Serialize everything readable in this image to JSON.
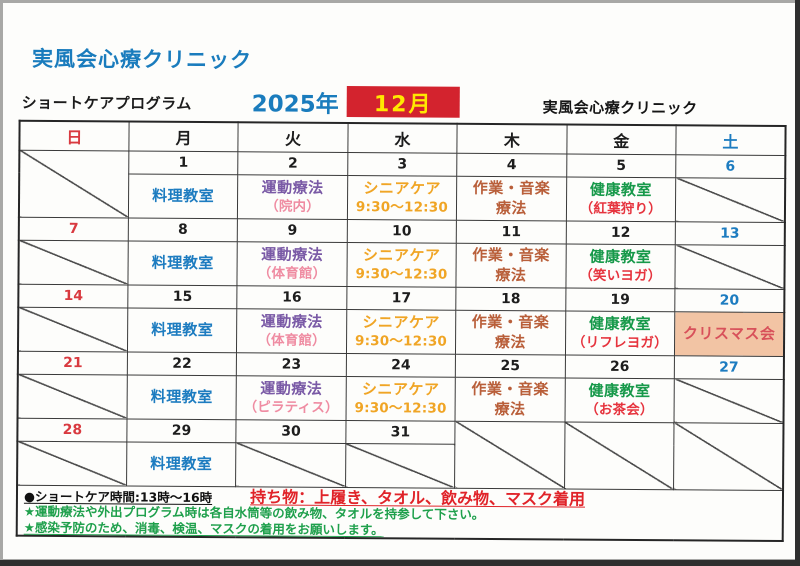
{
  "header": {
    "clinic_title": "実風会心療クリニック",
    "program_label": "ショートケアプログラム",
    "year_label": "2025年",
    "month_label": "12月",
    "clinic_name": "実風会心療クリニック"
  },
  "colors": {
    "title_blue": "#1a7cbd",
    "month_box_bg": "#d3232e",
    "month_box_text": "#ffe800",
    "sunday_red": "#d93a40",
    "saturday_blue": "#1d7cc0",
    "weekday_black": "#1d1d1d",
    "cooking_blue": "#1d7cc0",
    "exercise_purple": "#7a5aa6",
    "venue_pink": "#ef8ca2",
    "senior_orange": "#f0a525",
    "work_music_brick": "#b95f3a",
    "health_green": "#17994a",
    "paren_red": "#e6343e",
    "xmas_text": "#d8515a",
    "xmas_bg": "#f2c4a4",
    "note_red": "#e02329",
    "note_green": "#1fa04c"
  },
  "calendar": {
    "weekday_headers": [
      {
        "label": "日",
        "color_key": "sunday_red"
      },
      {
        "label": "月",
        "color_key": "weekday_black"
      },
      {
        "label": "火",
        "color_key": "weekday_black"
      },
      {
        "label": "水",
        "color_key": "weekday_black"
      },
      {
        "label": "木",
        "color_key": "weekday_black"
      },
      {
        "label": "金",
        "color_key": "weekday_black"
      },
      {
        "label": "土",
        "color_key": "saturday_blue"
      }
    ],
    "weeks": [
      {
        "dates": [
          "",
          "1",
          "2",
          "3",
          "4",
          "5",
          "6"
        ],
        "cells": [
          {
            "kind": "blank-merged"
          },
          {
            "kind": "program",
            "lines": [
              {
                "text": "料理教室",
                "color_key": "cooking_blue",
                "size": "lg"
              }
            ]
          },
          {
            "kind": "program",
            "lines": [
              {
                "text": "運動療法",
                "color_key": "exercise_purple",
                "size": "lg"
              },
              {
                "text": "（院内）",
                "color_key": "venue_pink",
                "size": "md"
              }
            ]
          },
          {
            "kind": "program",
            "lines": [
              {
                "text": "シニアケア",
                "color_key": "senior_orange",
                "size": "lg"
              },
              {
                "text": "9:30～12:30",
                "color_key": "senior_orange",
                "size": "md"
              }
            ]
          },
          {
            "kind": "program",
            "lines": [
              {
                "text": "作業・音楽",
                "color_key": "work_music_brick",
                "size": "lg"
              },
              {
                "text": "療法",
                "color_key": "work_music_brick",
                "size": "lg"
              }
            ]
          },
          {
            "kind": "program",
            "lines": [
              {
                "text": "健康教室",
                "color_key": "health_green",
                "size": "lg"
              },
              {
                "text": "（紅葉狩り）",
                "color_key": "paren_red",
                "size": "md"
              }
            ]
          },
          {
            "kind": "blank"
          }
        ]
      },
      {
        "dates": [
          "7",
          "8",
          "9",
          "10",
          "11",
          "12",
          "13"
        ],
        "cells": [
          {
            "kind": "blank"
          },
          {
            "kind": "program",
            "lines": [
              {
                "text": "料理教室",
                "color_key": "cooking_blue",
                "size": "lg"
              }
            ]
          },
          {
            "kind": "program",
            "lines": [
              {
                "text": "運動療法",
                "color_key": "exercise_purple",
                "size": "lg"
              },
              {
                "text": "（体育館）",
                "color_key": "venue_pink",
                "size": "md"
              }
            ]
          },
          {
            "kind": "program",
            "lines": [
              {
                "text": "シニアケア",
                "color_key": "senior_orange",
                "size": "lg"
              },
              {
                "text": "9:30～12:30",
                "color_key": "senior_orange",
                "size": "md"
              }
            ]
          },
          {
            "kind": "program",
            "lines": [
              {
                "text": "作業・音楽",
                "color_key": "work_music_brick",
                "size": "lg"
              },
              {
                "text": "療法",
                "color_key": "work_music_brick",
                "size": "lg"
              }
            ]
          },
          {
            "kind": "program",
            "lines": [
              {
                "text": "健康教室",
                "color_key": "health_green",
                "size": "lg"
              },
              {
                "text": "（笑いヨガ）",
                "color_key": "paren_red",
                "size": "md"
              }
            ]
          },
          {
            "kind": "blank"
          }
        ]
      },
      {
        "dates": [
          "14",
          "15",
          "16",
          "17",
          "18",
          "19",
          "20"
        ],
        "cells": [
          {
            "kind": "blank"
          },
          {
            "kind": "program",
            "lines": [
              {
                "text": "料理教室",
                "color_key": "cooking_blue",
                "size": "lg"
              }
            ]
          },
          {
            "kind": "program",
            "lines": [
              {
                "text": "運動療法",
                "color_key": "exercise_purple",
                "size": "lg"
              },
              {
                "text": "（体育館）",
                "color_key": "venue_pink",
                "size": "md"
              }
            ]
          },
          {
            "kind": "program",
            "lines": [
              {
                "text": "シニアケア",
                "color_key": "senior_orange",
                "size": "lg"
              },
              {
                "text": "9:30～12:30",
                "color_key": "senior_orange",
                "size": "md"
              }
            ]
          },
          {
            "kind": "program",
            "lines": [
              {
                "text": "作業・音楽",
                "color_key": "work_music_brick",
                "size": "lg"
              },
              {
                "text": "療法",
                "color_key": "work_music_brick",
                "size": "lg"
              }
            ]
          },
          {
            "kind": "program",
            "lines": [
              {
                "text": "健康教室",
                "color_key": "health_green",
                "size": "lg"
              },
              {
                "text": "（リフレヨガ）",
                "color_key": "paren_red",
                "size": "md"
              }
            ]
          },
          {
            "kind": "event",
            "lines": [
              {
                "text": "クリスマス会",
                "color_key": "xmas_text",
                "size": "lg"
              }
            ],
            "bg_key": "xmas_bg"
          }
        ]
      },
      {
        "dates": [
          "21",
          "22",
          "23",
          "24",
          "25",
          "26",
          "27"
        ],
        "cells": [
          {
            "kind": "blank"
          },
          {
            "kind": "program",
            "lines": [
              {
                "text": "料理教室",
                "color_key": "cooking_blue",
                "size": "lg"
              }
            ]
          },
          {
            "kind": "program",
            "lines": [
              {
                "text": "運動療法",
                "color_key": "exercise_purple",
                "size": "lg"
              },
              {
                "text": "（ピラティス）",
                "color_key": "venue_pink",
                "size": "md"
              }
            ]
          },
          {
            "kind": "program",
            "lines": [
              {
                "text": "シニアケア",
                "color_key": "senior_orange",
                "size": "lg"
              },
              {
                "text": "9:30～12:30",
                "color_key": "senior_orange",
                "size": "md"
              }
            ]
          },
          {
            "kind": "program",
            "lines": [
              {
                "text": "作業・音楽",
                "color_key": "work_music_brick",
                "size": "lg"
              },
              {
                "text": "療法",
                "color_key": "work_music_brick",
                "size": "lg"
              }
            ]
          },
          {
            "kind": "program",
            "lines": [
              {
                "text": "健康教室",
                "color_key": "health_green",
                "size": "lg"
              },
              {
                "text": "（お茶会）",
                "color_key": "paren_red",
                "size": "md"
              }
            ]
          },
          {
            "kind": "blank"
          }
        ]
      },
      {
        "dates": [
          "28",
          "29",
          "30",
          "31",
          "",
          "",
          ""
        ],
        "cells": [
          {
            "kind": "blank"
          },
          {
            "kind": "program",
            "lines": [
              {
                "text": "料理教室",
                "color_key": "cooking_blue",
                "size": "lg"
              }
            ]
          },
          {
            "kind": "blank"
          },
          {
            "kind": "blank"
          },
          {
            "kind": "blank-merged"
          },
          {
            "kind": "blank-merged"
          },
          {
            "kind": "blank-merged"
          }
        ]
      }
    ]
  },
  "notes": {
    "time_note": "●ショートケア時間:13時～16時",
    "belongings_note": "持ち物：上履き、タオル、飲み物、マスク着用",
    "hydration_note": "★運動療法や外出プログラム時は各自水筒等の飲み物、タオルを持参して下さい。",
    "infection_note": "★感染予防のため、消毒、検温、マスクの着用をお願いします。"
  }
}
